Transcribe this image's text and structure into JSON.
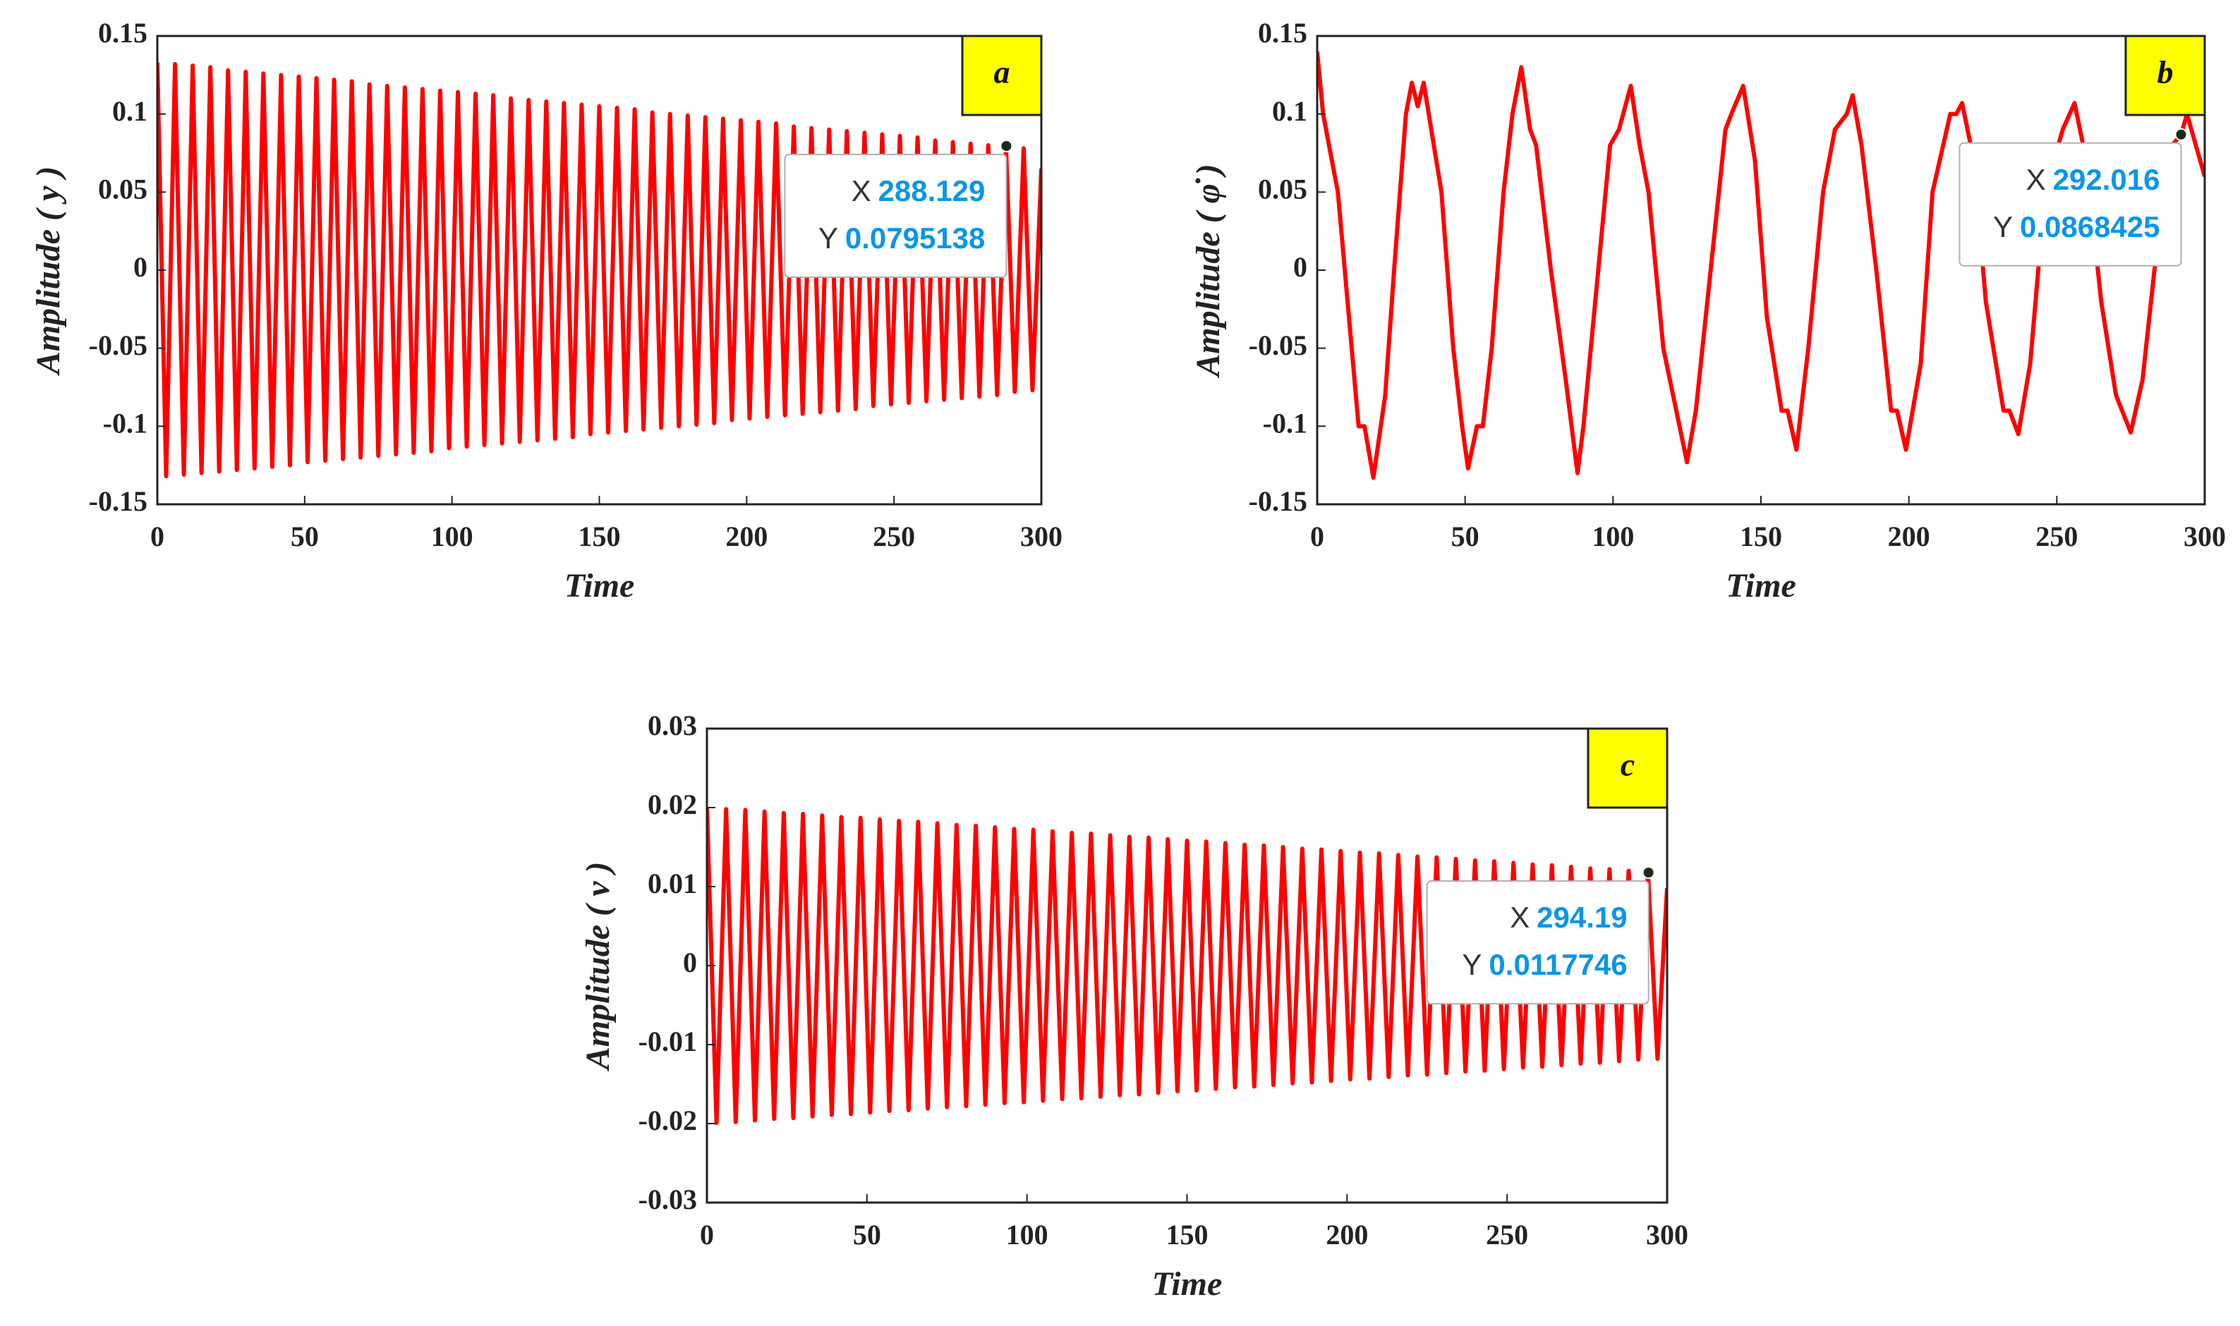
{
  "chart_data": [
    {
      "type": "line",
      "label": "a",
      "xlabel": "Time",
      "ylabel": "Amplitude ( y )",
      "color": "#ff0000",
      "xlim": [
        0,
        300
      ],
      "xticks": [
        0,
        50,
        100,
        150,
        200,
        250,
        300
      ],
      "ylim": [
        -0.15,
        0.15
      ],
      "yticks": [
        -0.15,
        -0.1,
        -0.05,
        0,
        0.05,
        0.1,
        0.15
      ],
      "x": [
        0,
        3,
        6,
        9,
        12,
        15,
        18,
        21,
        24,
        27,
        30,
        33,
        36,
        39,
        42,
        45,
        48,
        51,
        54,
        57,
        60,
        63,
        66,
        69,
        72,
        75,
        78,
        81,
        84,
        87,
        90,
        93,
        96,
        99,
        102,
        105,
        108,
        111,
        114,
        117,
        120,
        123,
        126,
        129,
        132,
        135,
        138,
        141,
        144,
        147,
        150,
        153,
        156,
        159,
        162,
        165,
        168,
        171,
        174,
        177,
        180,
        183,
        186,
        189,
        192,
        195,
        198,
        201,
        204,
        207,
        210,
        213,
        216,
        219,
        222,
        225,
        228,
        231,
        234,
        237,
        240,
        243,
        246,
        249,
        252,
        255,
        258,
        261,
        264,
        267,
        270,
        273,
        276,
        279,
        282,
        285,
        288,
        291,
        294,
        297,
        300
      ],
      "values": [
        0.133,
        -0.132,
        0.132,
        -0.131,
        0.131,
        -0.13,
        0.13,
        -0.129,
        0.128,
        -0.128,
        0.127,
        -0.127,
        0.126,
        -0.126,
        0.125,
        -0.125,
        0.124,
        -0.123,
        0.123,
        -0.122,
        0.122,
        -0.121,
        0.121,
        -0.12,
        0.119,
        -0.119,
        0.118,
        -0.118,
        0.117,
        -0.117,
        0.116,
        -0.116,
        0.115,
        -0.114,
        0.114,
        -0.113,
        0.113,
        -0.112,
        0.112,
        -0.111,
        0.11,
        -0.11,
        0.109,
        -0.109,
        0.108,
        -0.108,
        0.107,
        -0.107,
        0.106,
        -0.105,
        0.105,
        -0.104,
        0.104,
        -0.103,
        0.103,
        -0.102,
        0.101,
        -0.101,
        0.1,
        -0.1,
        0.099,
        -0.099,
        0.098,
        -0.098,
        0.097,
        -0.096,
        0.096,
        -0.095,
        0.095,
        -0.094,
        0.094,
        -0.093,
        0.092,
        -0.092,
        0.091,
        -0.091,
        0.09,
        -0.09,
        0.089,
        -0.089,
        0.088,
        -0.087,
        0.087,
        -0.086,
        0.086,
        -0.085,
        0.085,
        -0.084,
        0.083,
        -0.083,
        0.082,
        -0.082,
        0.081,
        -0.081,
        0.08,
        -0.08,
        0.079,
        -0.078,
        0.078,
        -0.077,
        0.065
      ],
      "datatip": {
        "x_label": "X",
        "x": 288.129,
        "y_label": "Y",
        "y": 0.0795138
      }
    },
    {
      "type": "line",
      "label": "b",
      "xlabel": "Time",
      "ylabel": "Amplitude ( φ̇ )",
      "color": "#ff0000",
      "xlim": [
        0,
        300
      ],
      "xticks": [
        0,
        50,
        100,
        150,
        200,
        250,
        300
      ],
      "ylim": [
        -0.15,
        0.15
      ],
      "yticks": [
        -0.15,
        -0.1,
        -0.05,
        0,
        0.05,
        0.1,
        0.15
      ],
      "x": [
        0,
        2,
        7,
        14,
        16,
        19,
        23,
        26,
        30,
        32,
        34,
        36,
        42,
        46,
        49,
        51,
        54,
        56,
        59,
        63,
        66,
        69,
        72,
        74,
        79,
        84,
        88,
        90,
        95,
        99,
        102,
        106,
        109,
        112,
        117,
        125,
        128,
        133,
        138,
        140,
        144,
        148,
        152,
        157,
        159,
        162,
        166,
        171,
        175,
        179,
        181,
        184,
        189,
        194,
        196,
        199,
        204,
        208,
        214,
        216,
        218,
        222,
        226,
        232,
        234,
        237,
        241,
        246,
        252,
        256,
        260,
        265,
        270,
        275,
        279,
        283,
        289,
        292.016,
        294,
        297,
        300
      ],
      "values": [
        0.14,
        0.1,
        0.05,
        -0.1,
        -0.1,
        -0.133,
        -0.08,
        0,
        0.1,
        0.12,
        0.105,
        0.12,
        0.05,
        -0.05,
        -0.1,
        -0.127,
        -0.1,
        -0.1,
        -0.05,
        0.05,
        0.1,
        0.13,
        0.09,
        0.08,
        0,
        -0.07,
        -0.13,
        -0.1,
        0,
        0.08,
        0.09,
        0.118,
        0.08,
        0.05,
        -0.05,
        -0.123,
        -0.09,
        0,
        0.09,
        0.1,
        0.118,
        0.07,
        -0.03,
        -0.09,
        -0.09,
        -0.115,
        -0.05,
        0.05,
        0.09,
        0.1,
        0.112,
        0.08,
        0,
        -0.09,
        -0.09,
        -0.115,
        -0.06,
        0.05,
        0.1,
        0.1,
        0.107,
        0.07,
        -0.02,
        -0.09,
        -0.09,
        -0.105,
        -0.06,
        0.05,
        0.09,
        0.107,
        0.07,
        -0.02,
        -0.08,
        -0.104,
        -0.07,
        0,
        0.08,
        0.0868425,
        0.1,
        0.08,
        0.06
      ],
      "datatip": {
        "x_label": "X",
        "x": 292.016,
        "y_label": "Y",
        "y": 0.0868425
      }
    },
    {
      "type": "line",
      "label": "c",
      "xlabel": "Time",
      "ylabel": "Amplitude ( v )",
      "color": "#ff0000",
      "xlim": [
        0,
        300
      ],
      "xticks": [
        0,
        50,
        100,
        150,
        200,
        250,
        300
      ],
      "ylim": [
        -0.03,
        0.03
      ],
      "yticks": [
        -0.03,
        -0.02,
        -0.01,
        0,
        0.01,
        0.02,
        0.03
      ],
      "x": [
        0,
        3,
        6,
        9,
        12,
        15,
        18,
        21,
        24,
        27,
        30,
        33,
        36,
        39,
        42,
        45,
        48,
        51,
        54,
        57,
        60,
        63,
        66,
        69,
        72,
        75,
        78,
        81,
        84,
        87,
        90,
        93,
        96,
        99,
        102,
        105,
        108,
        111,
        114,
        117,
        120,
        123,
        126,
        129,
        132,
        135,
        138,
        141,
        144,
        147,
        150,
        153,
        156,
        159,
        162,
        165,
        168,
        171,
        174,
        177,
        180,
        183,
        186,
        189,
        192,
        195,
        198,
        201,
        204,
        207,
        210,
        213,
        216,
        219,
        222,
        225,
        228,
        231,
        234,
        237,
        240,
        243,
        246,
        249,
        252,
        255,
        258,
        261,
        264,
        267,
        270,
        273,
        276,
        279,
        282,
        285,
        288,
        291,
        294,
        297,
        300
      ],
      "values": [
        0.02,
        -0.0199,
        0.0198,
        -0.0198,
        0.0197,
        -0.0196,
        0.0195,
        -0.0194,
        0.0193,
        -0.0193,
        0.0192,
        -0.0191,
        0.019,
        -0.0189,
        0.0188,
        -0.0188,
        0.0187,
        -0.0186,
        0.0185,
        -0.0184,
        0.0183,
        -0.0183,
        0.0182,
        -0.0181,
        0.018,
        -0.0179,
        0.0178,
        -0.0178,
        0.0177,
        -0.0176,
        0.0175,
        -0.0174,
        0.0173,
        -0.0173,
        0.0172,
        -0.0171,
        0.017,
        -0.0169,
        0.0168,
        -0.0168,
        0.0167,
        -0.0166,
        0.0165,
        -0.0164,
        0.0163,
        -0.0163,
        0.0162,
        -0.0161,
        0.016,
        -0.0159,
        0.0158,
        -0.0158,
        0.0157,
        -0.0156,
        0.0155,
        -0.0154,
        0.0153,
        -0.0153,
        0.0152,
        -0.0151,
        0.015,
        -0.0149,
        0.0148,
        -0.0148,
        0.0147,
        -0.0146,
        0.0145,
        -0.0144,
        0.0143,
        -0.0143,
        0.0142,
        -0.0141,
        0.014,
        -0.0139,
        0.0138,
        -0.0138,
        0.0137,
        -0.0136,
        0.0135,
        -0.0134,
        0.0133,
        -0.0133,
        0.0132,
        -0.0131,
        0.013,
        -0.0129,
        0.0128,
        -0.0128,
        0.0127,
        -0.0126,
        0.0125,
        -0.0124,
        0.0123,
        -0.0123,
        0.0122,
        -0.0121,
        0.012,
        -0.0119,
        0.0118,
        -0.0118,
        0.0098
      ],
      "datatip": {
        "x_label": "X",
        "x": 294.19,
        "y_label": "Y",
        "y": 0.0117746
      }
    }
  ]
}
